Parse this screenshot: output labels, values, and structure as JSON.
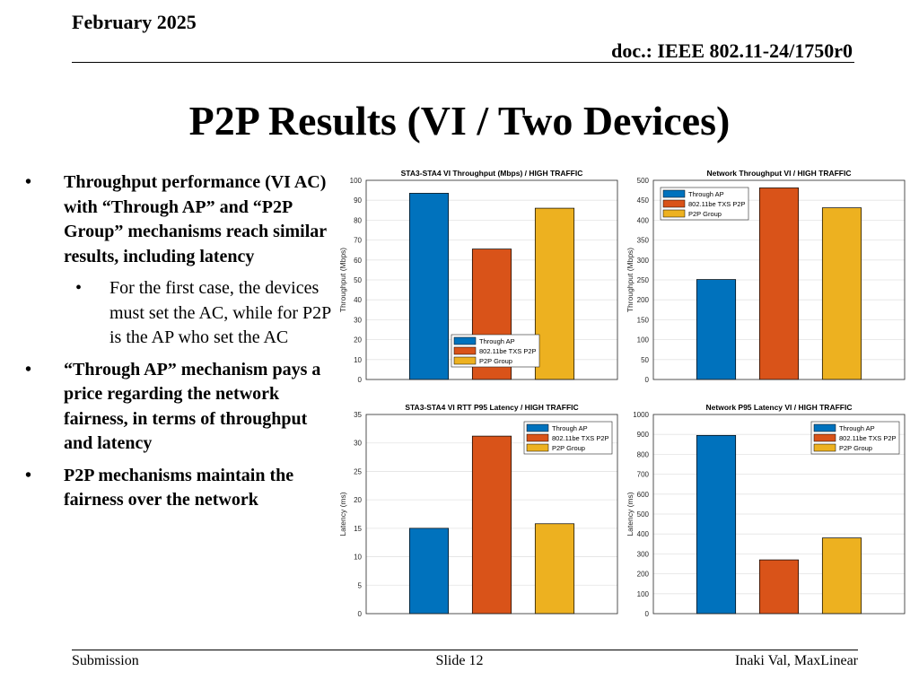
{
  "header": {
    "date": "February 2025",
    "doc": "doc.: IEEE 802.11-24/1750r0"
  },
  "slide": {
    "title": "P2P Results (VI / Two Devices)"
  },
  "bullets": [
    {
      "level": 1,
      "text": "Throughput performance (VI AC) with “Through AP” and “P2P Group” mechanisms reach similar results, including latency"
    },
    {
      "level": 2,
      "text": "For the first case, the devices must set the AC, while for P2P is the AP who set the AC"
    },
    {
      "level": 1,
      "text": "“Through AP” mechanism pays a price regarding the network fairness, in terms of throughput and latency"
    },
    {
      "level": 1,
      "text": "P2P mechanisms maintain the fairness over the network"
    }
  ],
  "footer": {
    "left": "Submission",
    "center": "Slide 12",
    "right": "Inaki Val, MaxLinear"
  },
  "colors": {
    "through_ap": "#0072BD",
    "txs_p2p": "#D95319",
    "p2p_group": "#EDB120"
  },
  "chart_data": [
    {
      "type": "bar",
      "title": "STA3-STA4 VI Throughput (Mbps) / HIGH TRAFFIC",
      "ylabel": "Throughput (Mbps)",
      "ylim": [
        0,
        100
      ],
      "yticks": [
        0,
        10,
        20,
        30,
        40,
        50,
        60,
        70,
        80,
        90,
        100
      ],
      "grid": true,
      "legend": "bottom-center",
      "series": [
        {
          "name": "Through AP",
          "value": 93.5
        },
        {
          "name": "802.11be TXS P2P",
          "value": 65.5
        },
        {
          "name": "P2P Group",
          "value": 86
        }
      ]
    },
    {
      "type": "bar",
      "title": "Network Throughput VI / HIGH TRAFFIC",
      "ylabel": "Throughput (Mbps)",
      "ylim": [
        0,
        500
      ],
      "yticks": [
        0,
        50,
        100,
        150,
        200,
        250,
        300,
        350,
        400,
        450,
        500
      ],
      "grid": true,
      "legend": "top-left",
      "series": [
        {
          "name": "Through AP",
          "value": 251
        },
        {
          "name": "802.11be TXS P2P",
          "value": 481
        },
        {
          "name": "P2P Group",
          "value": 431
        }
      ]
    },
    {
      "type": "bar",
      "title": "STA3-STA4 VI RTT P95 Latency / HIGH TRAFFIC",
      "ylabel": "Latency (ms)",
      "ylim": [
        0,
        35
      ],
      "yticks": [
        0,
        5,
        10,
        15,
        20,
        25,
        30,
        35
      ],
      "grid": true,
      "legend": "top-right",
      "series": [
        {
          "name": "Through AP",
          "value": 15
        },
        {
          "name": "802.11be TXS P2P",
          "value": 31.2
        },
        {
          "name": "P2P Group",
          "value": 15.8
        }
      ]
    },
    {
      "type": "bar",
      "title": "Network P95 Latency VI / HIGH TRAFFIC",
      "ylabel": "Latency (ms)",
      "ylim": [
        0,
        1000
      ],
      "yticks": [
        0,
        100,
        200,
        300,
        400,
        500,
        600,
        700,
        800,
        900,
        1000
      ],
      "grid": true,
      "legend": "top-right",
      "series": [
        {
          "name": "Through AP",
          "value": 895
        },
        {
          "name": "802.11be TXS P2P",
          "value": 270
        },
        {
          "name": "P2P Group",
          "value": 380
        }
      ]
    }
  ]
}
